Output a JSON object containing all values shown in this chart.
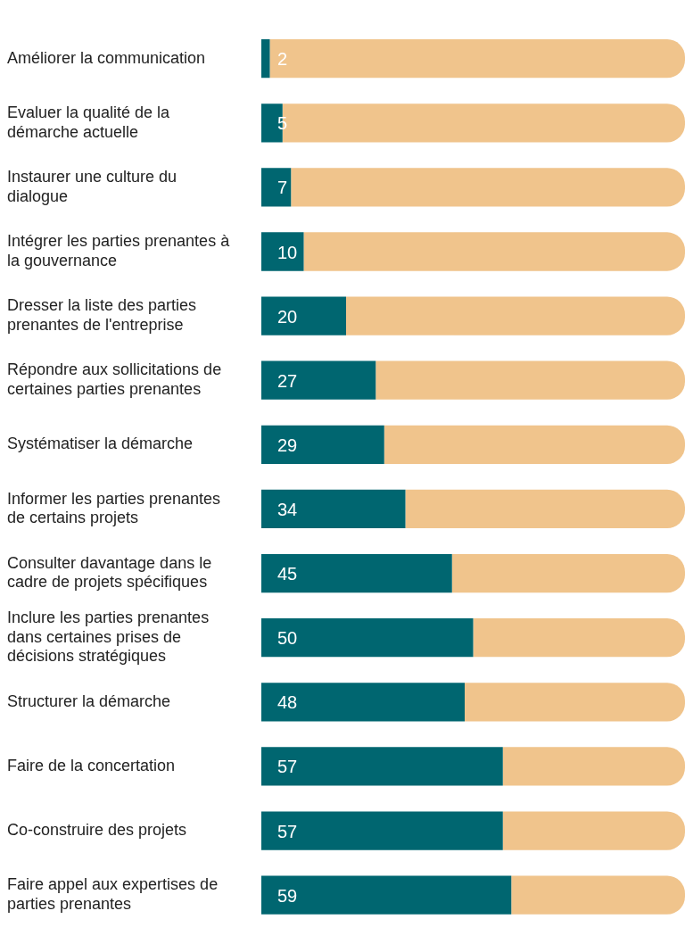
{
  "chart_data": {
    "type": "bar",
    "orientation": "horizontal",
    "stacked": true,
    "categories": [
      "Améliorer la communication",
      "Evaluer la qualité de la démarche actuelle",
      "Instaurer une culture du dialogue",
      "Intégrer les parties prenantes à la gouvernance",
      "Dresser la liste des parties prenantes de l'entreprise",
      "Répondre aux sollicitations de certaines parties prenantes",
      "Systématiser la démarche",
      "Informer les parties prenantes de certains projets",
      "Consulter davantage dans le cadre de projets spécifiques",
      "Inclure les parties prenantes dans certaines prises de décisions stratégiques",
      "Structurer la démarche",
      "Faire de la concertation",
      "Co-construire des projets",
      "Faire appel aux expertises de parties prenantes"
    ],
    "series": [
      {
        "color": "#006670",
        "values": [
          2,
          5,
          7,
          10,
          20,
          27,
          29,
          34,
          45,
          50,
          48,
          57,
          57,
          59
        ],
        "value_labels": [
          "2",
          "5",
          "7",
          "10",
          "20",
          "27",
          "29",
          "34",
          "45",
          "50",
          "48",
          "57",
          "57",
          "59"
        ]
      },
      {
        "color": "#f0c48c",
        "values": [
          98,
          95,
          93,
          90,
          80,
          73,
          71,
          66,
          55,
          50,
          52,
          43,
          43,
          41
        ]
      }
    ],
    "xlim": [
      0,
      100
    ],
    "tick_labels": "y",
    "legend": false
  }
}
